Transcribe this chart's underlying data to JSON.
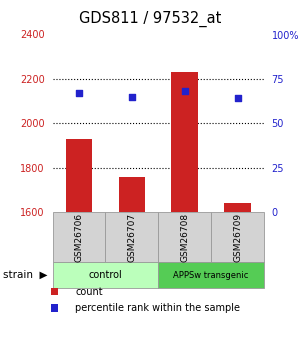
{
  "title": "GDS811 / 97532_at",
  "samples": [
    "GSM26706",
    "GSM26707",
    "GSM26708",
    "GSM26709"
  ],
  "counts": [
    1930,
    1760,
    2230,
    1640
  ],
  "percentiles": [
    67,
    65,
    68,
    64
  ],
  "ylim_left": [
    1600,
    2400
  ],
  "ylim_right": [
    0,
    100
  ],
  "yticks_left": [
    1600,
    1800,
    2000,
    2200,
    2400
  ],
  "yticks_right": [
    0,
    25,
    50,
    75,
    100
  ],
  "ytick_labels_right": [
    "0",
    "25",
    "50",
    "75",
    "100%"
  ],
  "bar_color": "#cc2222",
  "scatter_color": "#2222cc",
  "groups": [
    {
      "label": "control",
      "samples": [
        0,
        1
      ],
      "color": "#bbffbb"
    },
    {
      "label": "APPSw transgenic",
      "samples": [
        2,
        3
      ],
      "color": "#55cc55"
    }
  ],
  "strain_label": "strain",
  "legend_items": [
    {
      "color": "#cc2222",
      "label": "count"
    },
    {
      "color": "#2222cc",
      "label": "percentile rank within the sample"
    }
  ],
  "background_color": "#ffffff",
  "left_tick_color": "#cc2222",
  "right_tick_color": "#2222cc",
  "grid_dotted_at": [
    1800,
    2000,
    2200
  ],
  "bar_width": 0.5
}
